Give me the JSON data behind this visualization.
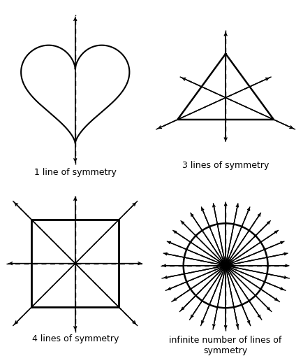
{
  "background_color": "#ffffff",
  "text_color": "#000000",
  "line_color": "#000000",
  "labels": [
    "1 line of symmetry",
    "3 lines of symmetry",
    "4 lines of symmetry",
    "infinite number of lines of\nsymmetry"
  ],
  "font_size": 9,
  "figsize": [
    4.35,
    5.19
  ],
  "dpi": 100,
  "circle_n_lines": 16
}
